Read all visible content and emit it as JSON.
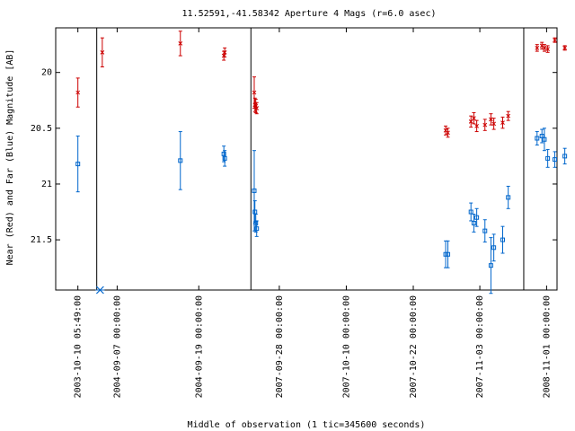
{
  "chart_data": {
    "type": "scatter",
    "title": "11.52591,-41.58342   Aperture 4 Mags (r=6.0 asec)",
    "xlabel": "Middle of observation (1 tic=345600 seconds)",
    "ylabel": "Near (Red) and Far (Blue) Magnitude [AB]",
    "y_reversed": true,
    "ylim": [
      19.6,
      21.95
    ],
    "xlim": [
      -1,
      21.6
    ],
    "yticks": [
      20,
      20.5,
      21,
      21.5
    ],
    "ytick_labels": [
      "20",
      "20.5",
      "21",
      "21.5"
    ],
    "xticks": [
      {
        "x": 0,
        "label": "2003-10-10 05:49:00"
      },
      {
        "x": 1.77,
        "label": "2004-09-07 00:00:00"
      },
      {
        "x": 5.45,
        "label": "2004-09-19 00:00:00"
      },
      {
        "x": 9.08,
        "label": "2007-09-28 00:00:00"
      },
      {
        "x": 12.1,
        "label": "2007-10-10 00:00:00"
      },
      {
        "x": 15.12,
        "label": "2007-10-22 00:00:00"
      },
      {
        "x": 18.12,
        "label": "2007-11-03 00:00:00"
      },
      {
        "x": 21.13,
        "label": "2008-11-01 00:00:00"
      }
    ],
    "segment_breaks": [
      0.85,
      7.8,
      20.1
    ],
    "series": [
      {
        "color": "#cc0000",
        "marker": "x",
        "points": [
          {
            "x": 0,
            "y": 20.18,
            "err": 0.13
          },
          {
            "x": 1.1,
            "y": 19.82,
            "err": 0.13
          },
          {
            "x": 4.62,
            "y": 19.74,
            "err": 0.11
          },
          {
            "x": 6.58,
            "y": 19.85,
            "err": 0.04
          },
          {
            "x": 6.62,
            "y": 19.82,
            "err": 0.04
          },
          {
            "x": 7.95,
            "y": 20.18,
            "err": 0.14
          },
          {
            "x": 7.98,
            "y": 20.29,
            "err": 0.06
          },
          {
            "x": 8.02,
            "y": 20.3,
            "err": 0.06
          },
          {
            "x": 8.06,
            "y": 20.32,
            "err": 0.05
          },
          {
            "x": 16.58,
            "y": 20.52,
            "err": 0.04
          },
          {
            "x": 16.68,
            "y": 20.54,
            "err": 0.04
          },
          {
            "x": 17.72,
            "y": 20.44,
            "err": 0.05
          },
          {
            "x": 17.85,
            "y": 20.41,
            "err": 0.05
          },
          {
            "x": 17.98,
            "y": 20.48,
            "err": 0.05
          },
          {
            "x": 18.35,
            "y": 20.47,
            "err": 0.05
          },
          {
            "x": 18.62,
            "y": 20.42,
            "err": 0.05
          },
          {
            "x": 18.75,
            "y": 20.46,
            "err": 0.05
          },
          {
            "x": 19.15,
            "y": 20.45,
            "err": 0.05
          },
          {
            "x": 19.4,
            "y": 20.39,
            "err": 0.04
          },
          {
            "x": 20.7,
            "y": 19.78,
            "err": 0.03
          },
          {
            "x": 20.92,
            "y": 19.76,
            "err": 0.03
          },
          {
            "x": 21.03,
            "y": 19.78,
            "err": 0.03
          },
          {
            "x": 21.18,
            "y": 19.79,
            "err": 0.03
          },
          {
            "x": 21.5,
            "y": 19.71,
            "err": 0.02
          },
          {
            "x": 21.95,
            "y": 19.78,
            "err": 0.02
          }
        ]
      },
      {
        "color": "#0066cc",
        "marker": "square",
        "points": [
          {
            "x": 0,
            "y": 20.82,
            "err": 0.25
          },
          {
            "x": 4.62,
            "y": 20.79,
            "err": 0.26
          },
          {
            "x": 6.58,
            "y": 20.73,
            "err": 0.07
          },
          {
            "x": 6.62,
            "y": 20.77,
            "err": 0.07
          },
          {
            "x": 7.95,
            "y": 21.06,
            "err": 0.36
          },
          {
            "x": 7.98,
            "y": 21.25,
            "err": 0.1
          },
          {
            "x": 8.02,
            "y": 21.35,
            "err": 0.08
          },
          {
            "x": 8.06,
            "y": 21.4,
            "err": 0.07
          },
          {
            "x": 16.58,
            "y": 21.63,
            "err": 0.12
          },
          {
            "x": 16.68,
            "y": 21.63,
            "err": 0.12
          },
          {
            "x": 17.72,
            "y": 21.25,
            "err": 0.08
          },
          {
            "x": 17.85,
            "y": 21.35,
            "err": 0.08
          },
          {
            "x": 17.98,
            "y": 21.3,
            "err": 0.08
          },
          {
            "x": 18.35,
            "y": 21.42,
            "err": 0.1
          },
          {
            "x": 18.62,
            "y": 21.73,
            "err": 0.25
          },
          {
            "x": 18.75,
            "y": 21.57,
            "err": 0.12
          },
          {
            "x": 19.15,
            "y": 21.5,
            "err": 0.12
          },
          {
            "x": 19.4,
            "y": 21.12,
            "err": 0.1
          },
          {
            "x": 20.7,
            "y": 20.59,
            "err": 0.06
          },
          {
            "x": 20.92,
            "y": 20.57,
            "err": 0.06
          },
          {
            "x": 21.03,
            "y": 20.6,
            "err": 0.1
          },
          {
            "x": 21.18,
            "y": 20.77,
            "err": 0.08
          },
          {
            "x": 21.5,
            "y": 20.78,
            "err": 0.07
          },
          {
            "x": 21.95,
            "y": 20.75,
            "err": 0.07
          }
        ]
      }
    ],
    "offscale_markers": [
      {
        "x": 1.0,
        "color": "#0066cc",
        "marker": "x"
      }
    ]
  }
}
